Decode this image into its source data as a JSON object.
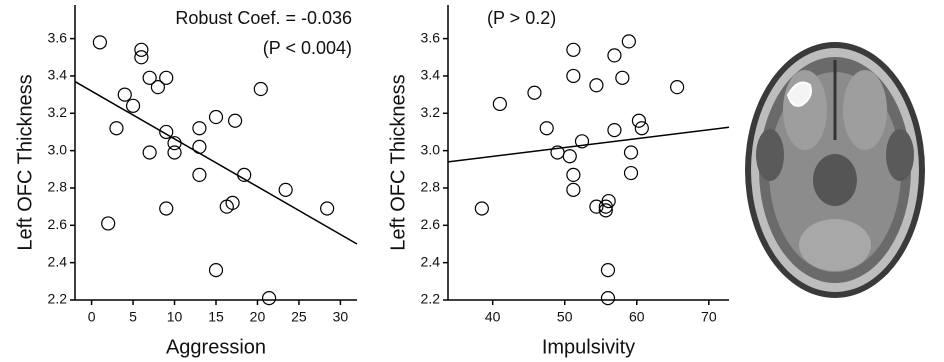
{
  "chart_data": [
    {
      "type": "scatter",
      "x_label": "Aggression",
      "y_label": "Left OFC Thickness",
      "annotations": [
        "Robust Coef. = -0.036",
        "(P < 0.004)"
      ],
      "x": [
        1,
        2,
        3,
        4,
        5,
        6,
        6,
        7,
        7,
        8,
        9,
        9,
        9,
        10,
        10,
        13,
        13,
        13,
        15,
        15,
        16.3,
        17.3,
        17,
        18.4,
        20.4,
        21.4,
        23.4,
        28.4
      ],
      "y": [
        3.58,
        2.61,
        3.12,
        3.3,
        3.24,
        3.54,
        3.5,
        3.39,
        2.99,
        3.34,
        3.39,
        3.1,
        2.69,
        3.04,
        2.99,
        3.12,
        3.02,
        2.87,
        3.18,
        2.36,
        2.7,
        3.16,
        2.72,
        2.87,
        3.33,
        2.21,
        2.79,
        2.69
      ],
      "fit": {
        "x": [
          -2,
          32
        ],
        "y": [
          3.37,
          2.5
        ]
      },
      "xlim": [
        -2,
        32
      ],
      "ylim": [
        2.2,
        3.78
      ],
      "xticks": [
        0,
        5,
        10,
        15,
        20,
        25,
        30
      ],
      "yticks": [
        2.2,
        2.4,
        2.6,
        2.8,
        {
          "value": 3,
          "label": "3.0"
        },
        3.2,
        3.4,
        3.6
      ]
    },
    {
      "type": "scatter",
      "x_label": "Impulsivity",
      "y_label": "Left OFC Thickness",
      "annotations": [
        "(P > 0.2)"
      ],
      "x": [
        38.5,
        41,
        45.8,
        47.5,
        49,
        50.7,
        51.2,
        51.2,
        51.2,
        51.2,
        52.4,
        54.4,
        54.4,
        55.7,
        56.1,
        55.7,
        56,
        56,
        56.9,
        56.9,
        58,
        58.9,
        59.2,
        59.2,
        60.3,
        60.7,
        65.6
      ],
      "y": [
        2.69,
        3.25,
        3.31,
        3.12,
        2.99,
        2.97,
        3.54,
        3.4,
        2.87,
        2.79,
        3.05,
        3.35,
        2.7,
        2.7,
        2.73,
        2.68,
        2.36,
        2.21,
        3.51,
        3.11,
        3.39,
        3.585,
        2.99,
        2.88,
        3.16,
        3.12,
        3.34
      ],
      "fit": {
        "x": [
          33.8,
          72.8
        ],
        "y": [
          2.94,
          3.125
        ]
      },
      "xlim": [
        33.8,
        72.8
      ],
      "ylim": [
        2.2,
        3.78
      ],
      "xticks": [
        40,
        50,
        60,
        70
      ],
      "yticks": [
        2.2,
        2.4,
        2.6,
        2.8,
        {
          "value": 3,
          "label": "3.0"
        },
        3.2,
        3.4,
        3.6
      ]
    }
  ]
}
